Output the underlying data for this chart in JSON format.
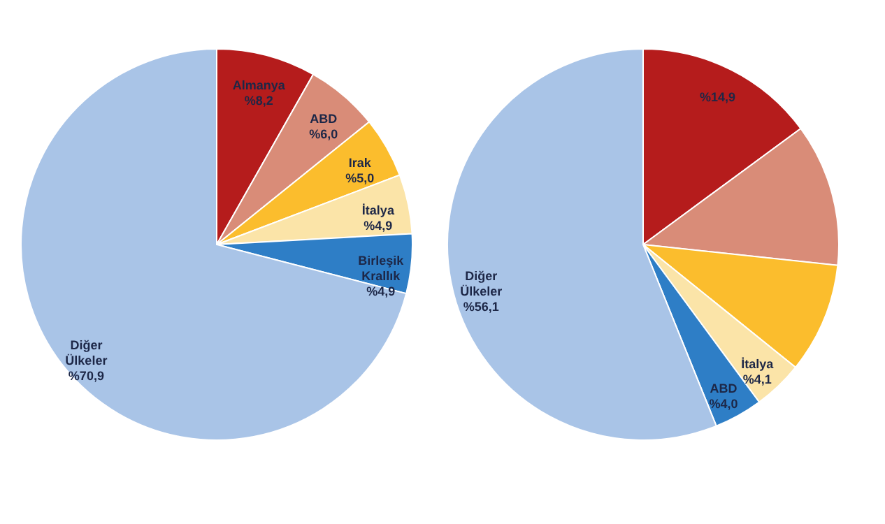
{
  "chart_data": [
    {
      "type": "pie",
      "categories": [
        "Almanya",
        "ABD",
        "Irak",
        "İtalya",
        "Birleşik Krallık",
        "Diğer Ülkeler"
      ],
      "values": [
        8.2,
        6.0,
        5.0,
        4.9,
        4.9,
        70.9
      ],
      "value_labels": [
        "%8,2",
        "%6,0",
        "%5,0",
        "%4,9",
        "%4,9",
        "%70,9"
      ],
      "colors": [
        "#b51c1c",
        "#d98c78",
        "#fbbd2d",
        "#fbe4a8",
        "#2e7ec6",
        "#a9c4e7"
      ]
    },
    {
      "type": "pie",
      "categories": [
        null,
        null,
        null,
        "İtalya",
        "ABD",
        "Diğer Ülkeler"
      ],
      "values": [
        14.9,
        11.8,
        9.1,
        4.1,
        4.0,
        56.1
      ],
      "value_labels": [
        "%14,9",
        null,
        null,
        "%4,1",
        "%4,0",
        "%56,1"
      ],
      "colors": [
        "#b51c1c",
        "#d98c78",
        "#fbbd2d",
        "#fbe4a8",
        "#2e7ec6",
        "#a9c4e7"
      ]
    }
  ]
}
